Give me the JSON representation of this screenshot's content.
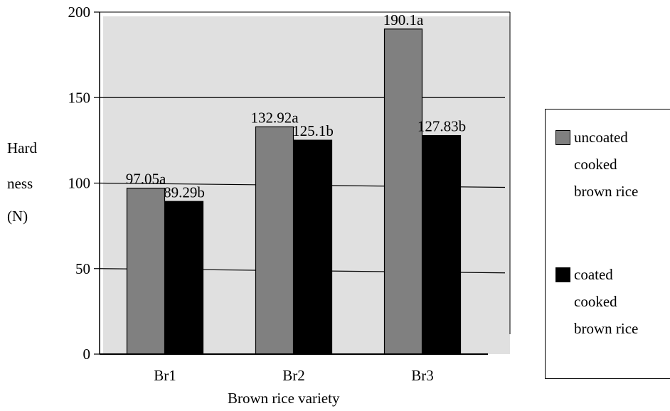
{
  "chart_data": {
    "type": "bar",
    "categories": [
      "Br1",
      "Br2",
      "Br3"
    ],
    "series": [
      {
        "name": "uncoated cooked brown rice",
        "values": [
          97.05,
          132.92,
          190.1
        ],
        "labels": [
          "97.05a",
          "132.92a",
          "190.1a"
        ],
        "color": "#808080"
      },
      {
        "name": "coated cooked brown rice",
        "values": [
          89.29,
          125.1,
          127.83
        ],
        "labels": [
          "89.29b",
          "125.1b",
          "127.83b"
        ],
        "color": "#000000"
      }
    ],
    "yticks": [
      "0",
      "50",
      "100",
      "150",
      "200"
    ],
    "ylim": [
      0,
      200
    ],
    "xlabel": "Brown rice variety",
    "ylabel_lines": [
      "Hard",
      "ness",
      "(N)"
    ],
    "legend": {
      "placement": "right",
      "items": [
        {
          "lines": [
            "uncoated",
            "cooked",
            "brown rice"
          ],
          "color": "#808080"
        },
        {
          "lines": [
            "coated",
            "cooked",
            "brown rice"
          ],
          "color": "#000000"
        }
      ]
    },
    "plot_background": "#e0e0e0",
    "grid": true
  }
}
